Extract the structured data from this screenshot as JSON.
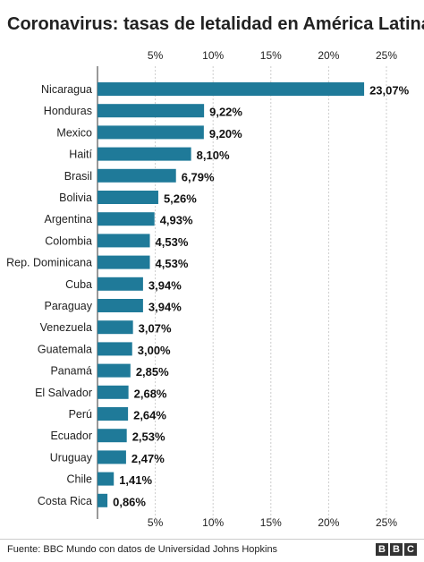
{
  "title": "Coronavirus: tasas de letalidad en América Latina",
  "source": "Fuente: BBC Mundo con datos de Universidad Johns Hopkins",
  "logo": [
    "B",
    "B",
    "C"
  ],
  "colors": {
    "bar": "#1f7a99",
    "grid": "#cccccc"
  },
  "chart_data": {
    "type": "bar",
    "orientation": "horizontal",
    "categories": [
      "Nicaragua",
      "Honduras",
      "Mexico",
      "Haití",
      "Brasil",
      "Bolivia",
      "Argentina",
      "Colombia",
      "Rep. Dominicana",
      "Cuba",
      "Paraguay",
      "Venezuela",
      "Guatemala",
      "Panamá",
      "El Salvador",
      "Perú",
      "Ecuador",
      "Uruguay",
      "Chile",
      "Costa Rica"
    ],
    "values": [
      23.07,
      9.22,
      9.2,
      8.1,
      6.79,
      5.26,
      4.93,
      4.53,
      4.53,
      3.94,
      3.94,
      3.07,
      3.0,
      2.85,
      2.68,
      2.64,
      2.53,
      2.47,
      1.41,
      0.86
    ],
    "value_labels": [
      "23,07%",
      "9,22%",
      "9,20%",
      "8,10%",
      "6,79%",
      "5,26%",
      "4,93%",
      "4,53%",
      "4,53%",
      "3,94%",
      "3,94%",
      "3,07%",
      "3,00%",
      "2,85%",
      "2,68%",
      "2,64%",
      "2,53%",
      "2,47%",
      "1,41%",
      "0,86%"
    ],
    "xticks": [
      5,
      10,
      15,
      20,
      25
    ],
    "xtick_labels": [
      "5%",
      "10%",
      "15%",
      "20%",
      "25%"
    ],
    "xlim": [
      0,
      25
    ],
    "grid": true,
    "tick_positions": [
      "top",
      "bottom"
    ]
  }
}
